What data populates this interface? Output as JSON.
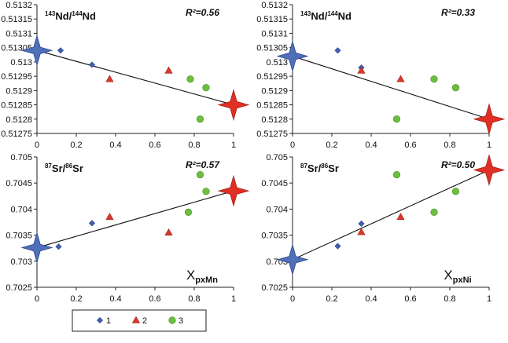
{
  "legend": [
    {
      "label": "1",
      "color": "#3F5FB5",
      "marker": "diamond"
    },
    {
      "label": "2",
      "color": "#D9382A",
      "marker": "triangle"
    },
    {
      "label": "3",
      "color": "#6CBF3D",
      "marker": "circle"
    }
  ],
  "chart_data": [
    {
      "type": "scatter",
      "title_main": "Nd",
      "title_den": "Nd",
      "title_sup_main": "143",
      "title_sup_den": "144",
      "r2": "R²=0.56",
      "xlabel": "",
      "xlabel_sub": "",
      "xlim": [
        0,
        1
      ],
      "ylim": [
        0.51275,
        0.5132
      ],
      "xticks": [
        0,
        0.2,
        0.4,
        0.6,
        0.8,
        1
      ],
      "xtick_labels": [
        "0",
        "0.2",
        "0.4",
        "0.6",
        "0.8",
        "1"
      ],
      "yticks": [
        0.51275,
        0.5128,
        0.51285,
        0.5129,
        0.51295,
        0.513,
        0.51305,
        0.5131,
        0.51315,
        0.5132
      ],
      "ytick_labels": [
        "0.51275",
        "0.5128",
        "0.51285",
        "0.5129",
        "0.51295",
        "0.513",
        "0.51305",
        "0.5131",
        "0.51315",
        "0.5132"
      ],
      "series": [
        {
          "name": "1",
          "marker": "diamond",
          "color": "#3F5FB5",
          "points": [
            [
              0.12,
              0.51304
            ],
            [
              0.28,
              0.51299
            ]
          ]
        },
        {
          "name": "2",
          "marker": "triangle",
          "color": "#D9382A",
          "points": [
            [
              0.37,
              0.51294
            ],
            [
              0.67,
              0.51297
            ]
          ]
        },
        {
          "name": "3",
          "marker": "circle",
          "color": "#6CBF3D",
          "points": [
            [
              0.78,
              0.51294
            ],
            [
              0.86,
              0.51291
            ],
            [
              0.83,
              0.5128
            ]
          ]
        }
      ],
      "endmembers": [
        {
          "x": 0,
          "y": 0.51304,
          "color": "#4F6FB8"
        },
        {
          "x": 1,
          "y": 0.51285,
          "color": "#E12F24"
        }
      ],
      "trendline": [
        [
          0,
          0.51304
        ],
        [
          1,
          0.51285
        ]
      ]
    },
    {
      "type": "scatter",
      "title_main": "Nd",
      "title_den": "Nd",
      "title_sup_main": "143",
      "title_sup_den": "144",
      "r2": "R²=0.33",
      "xlabel": "",
      "xlabel_sub": "",
      "xlim": [
        0,
        1
      ],
      "ylim": [
        0.51275,
        0.5132
      ],
      "xticks": [
        0,
        0.2,
        0.4,
        0.6,
        0.8,
        1
      ],
      "xtick_labels": [
        "0",
        "0.2",
        "0.4",
        "0.6",
        "0.8",
        "1"
      ],
      "yticks": [
        0.51275,
        0.5128,
        0.51285,
        0.5129,
        0.51295,
        0.513,
        0.51305,
        0.5131,
        0.51315,
        0.5132
      ],
      "ytick_labels": [
        "0.51275",
        "0.5128",
        "0.51285",
        "0.5129",
        "0.51295",
        "0.513",
        "0.51305",
        "0.5131",
        "0.51315",
        "0.5132"
      ],
      "series": [
        {
          "name": "1",
          "marker": "diamond",
          "color": "#3F5FB5",
          "points": [
            [
              0.23,
              0.51304
            ],
            [
              0.35,
              0.51298
            ]
          ]
        },
        {
          "name": "2",
          "marker": "triangle",
          "color": "#D9382A",
          "points": [
            [
              0.35,
              0.51297
            ],
            [
              0.55,
              0.51294
            ]
          ]
        },
        {
          "name": "3",
          "marker": "circle",
          "color": "#6CBF3D",
          "points": [
            [
              0.72,
              0.51294
            ],
            [
              0.83,
              0.51291
            ],
            [
              0.53,
              0.5128
            ]
          ]
        }
      ],
      "endmembers": [
        {
          "x": 0,
          "y": 0.51302,
          "color": "#4F6FB8"
        },
        {
          "x": 1,
          "y": 0.5128,
          "color": "#E12F24"
        }
      ],
      "trendline": [
        [
          0,
          0.51302
        ],
        [
          1,
          0.5128
        ]
      ]
    },
    {
      "type": "scatter",
      "title_main": "Sr",
      "title_den": "Sr",
      "title_sup_main": "87",
      "title_sup_den": "86",
      "r2": "R²=0.57",
      "xlabel": "X",
      "xlabel_sub": "pxMn",
      "xlim": [
        0,
        1
      ],
      "ylim": [
        0.7025,
        0.705
      ],
      "xticks": [
        0,
        0.2,
        0.4,
        0.6,
        0.8,
        1
      ],
      "xtick_labels": [
        "0",
        "0.2",
        "0.4",
        "0.6",
        "0.8",
        "1"
      ],
      "yticks": [
        0.7025,
        0.703,
        0.7035,
        0.704,
        0.7045,
        0.705
      ],
      "ytick_labels": [
        "0.7025",
        "0.703",
        "0.7035",
        "0.704",
        "0.7045",
        "0.705"
      ],
      "series": [
        {
          "name": "1",
          "marker": "diamond",
          "color": "#3F5FB5",
          "points": [
            [
              0.11,
              0.70328
            ],
            [
              0.28,
              0.70373
            ]
          ]
        },
        {
          "name": "2",
          "marker": "triangle",
          "color": "#D9382A",
          "points": [
            [
              0.37,
              0.70385
            ],
            [
              0.67,
              0.70355
            ]
          ]
        },
        {
          "name": "3",
          "marker": "circle",
          "color": "#6CBF3D",
          "points": [
            [
              0.77,
              0.70394
            ],
            [
              0.83,
              0.70466
            ],
            [
              0.86,
              0.70434
            ]
          ]
        }
      ],
      "endmembers": [
        {
          "x": 0,
          "y": 0.70326,
          "color": "#4F6FB8"
        },
        {
          "x": 1,
          "y": 0.70435,
          "color": "#E12F24"
        }
      ],
      "trendline": [
        [
          0,
          0.70326
        ],
        [
          1,
          0.70435
        ]
      ]
    },
    {
      "type": "scatter",
      "title_main": "Sr",
      "title_den": "Sr",
      "title_sup_main": "87",
      "title_sup_den": "86",
      "r2": "R²=0.50",
      "xlabel": "X",
      "xlabel_sub": "pxNi",
      "xlim": [
        0,
        1
      ],
      "ylim": [
        0.7025,
        0.705
      ],
      "xticks": [
        0,
        0.2,
        0.4,
        0.6,
        0.8,
        1
      ],
      "xtick_labels": [
        "0",
        "0.2",
        "0.4",
        "0.6",
        "0.8",
        "1"
      ],
      "yticks": [
        0.7025,
        0.703,
        0.7035,
        0.704,
        0.7045,
        0.705
      ],
      "ytick_labels": [
        "0.7025",
        "0.703",
        "0.7035",
        "0.704",
        "0.7045",
        "0.705"
      ],
      "series": [
        {
          "name": "1",
          "marker": "diamond",
          "color": "#3F5FB5",
          "points": [
            [
              0.23,
              0.70329
            ],
            [
              0.35,
              0.70372
            ]
          ]
        },
        {
          "name": "2",
          "marker": "triangle",
          "color": "#D9382A",
          "points": [
            [
              0.35,
              0.70356
            ],
            [
              0.55,
              0.70385
            ]
          ]
        },
        {
          "name": "3",
          "marker": "circle",
          "color": "#6CBF3D",
          "points": [
            [
              0.53,
              0.70466
            ],
            [
              0.72,
              0.70394
            ],
            [
              0.83,
              0.70434
            ]
          ]
        }
      ],
      "endmembers": [
        {
          "x": 0,
          "y": 0.70303,
          "color": "#4F6FB8"
        },
        {
          "x": 1,
          "y": 0.70475,
          "color": "#E12F24"
        }
      ],
      "trendline": [
        [
          0,
          0.70303
        ],
        [
          1,
          0.70475
        ]
      ]
    }
  ]
}
